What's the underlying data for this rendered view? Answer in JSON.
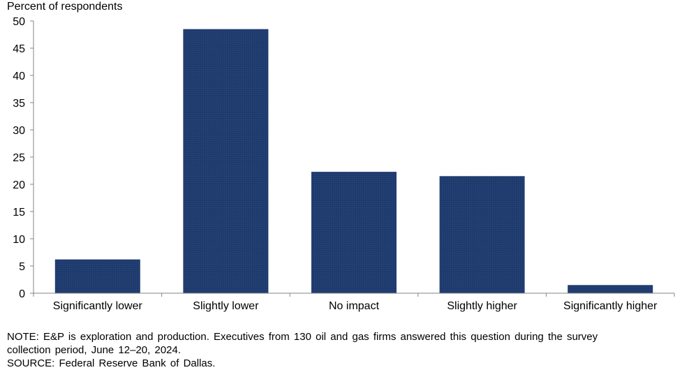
{
  "chart_data": {
    "type": "bar",
    "ylabel": "Percent of respondents",
    "categories": [
      "Significantly lower",
      "Slightly lower",
      "No impact",
      "Slightly higher",
      "Significantly higher"
    ],
    "values": [
      6.2,
      48.5,
      22.3,
      21.5,
      1.5
    ],
    "ylim": [
      0,
      50
    ],
    "yticks": [
      "0",
      "5",
      "10",
      "15",
      "20",
      "25",
      "30",
      "35",
      "40",
      "45",
      "50"
    ],
    "grid": false,
    "bar_color": "#1f3b6e"
  },
  "notes": {
    "note_line1": "NOTE: E&P is exploration and production. Executives from 130 oil and gas firms answered this question during the survey",
    "note_line2": "collection period, June 12–20, 2024.",
    "source": "SOURCE: Federal Reserve Bank of Dallas."
  }
}
